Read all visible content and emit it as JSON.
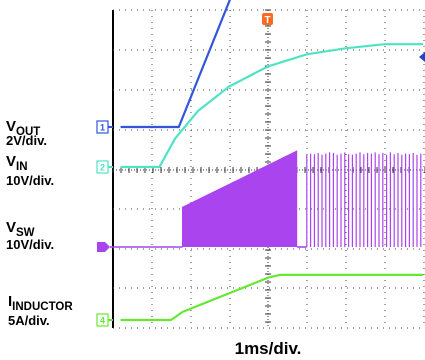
{
  "chart_data": {
    "type": "line",
    "title": "",
    "xlabel": "1ms/div.",
    "x_unit": "ms",
    "x_range_ms": [
      -3.8,
      4.0
    ],
    "grid": true,
    "trigger_marker": "T",
    "channels": [
      {
        "id": "1",
        "name": "VOUT",
        "name_main": "V",
        "name_sub": "OUT",
        "scale": "2V/div.",
        "color": "#3355dd",
        "points": [
          [
            -3.8,
            0
          ],
          [
            -2.3,
            0
          ],
          [
            -0.05,
            5.4
          ],
          [
            0.3,
            6.0
          ],
          [
            4.0,
            6.0
          ]
        ]
      },
      {
        "id": "2",
        "name": "VIN",
        "name_main": "V",
        "name_sub": "IN",
        "scale": "10V/div.",
        "color": "#4fe3c3",
        "points": [
          [
            -3.8,
            0
          ],
          [
            -2.8,
            0
          ],
          [
            -2.4,
            0.7
          ],
          [
            -1.8,
            1.4
          ],
          [
            -1.0,
            2.0
          ],
          [
            0.0,
            2.5
          ],
          [
            1.0,
            2.8
          ],
          [
            2.0,
            2.95
          ],
          [
            3.0,
            3.05
          ],
          [
            4.0,
            3.05
          ]
        ]
      },
      {
        "id": "3",
        "name": "VSW",
        "name_main": "V",
        "name_sub": "SW",
        "scale": "10V/div.",
        "color": "#aa44ee",
        "switching": {
          "start_ms": -2.2,
          "end_ms": 4.0,
          "start_peak_div": 1.0,
          "ramp_end_ms": 0.75,
          "peak_div": 2.4,
          "cluster_gap_ms": [
            0.75,
            1.0
          ],
          "end_peak_div": 2.35
        }
      },
      {
        "id": "4",
        "name": "IINDUCTOR",
        "name_main": "I",
        "name_sub": "INDUCTOR",
        "scale": "5A/div.",
        "color": "#66e833",
        "points": [
          [
            -3.8,
            0
          ],
          [
            -2.5,
            0
          ],
          [
            -2.2,
            0.2
          ],
          [
            0.0,
            1.05
          ],
          [
            0.3,
            1.12
          ],
          [
            4.0,
            1.12
          ]
        ]
      }
    ]
  }
}
